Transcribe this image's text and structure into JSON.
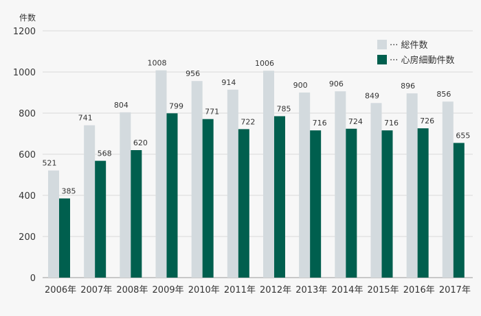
{
  "chart_data": {
    "type": "bar",
    "ylabel": "件数",
    "categories": [
      "2006年",
      "2007年",
      "2008年",
      "2009年",
      "2010年",
      "2011年",
      "2012年",
      "2013年",
      "2014年",
      "2015年",
      "2016年",
      "2017年"
    ],
    "series": [
      {
        "name": "総件数",
        "color": "#d3dade",
        "values": [
          521,
          741,
          804,
          1008,
          956,
          914,
          1006,
          900,
          906,
          849,
          896,
          856
        ]
      },
      {
        "name": "心房細動件数",
        "color": "#005f4e",
        "values": [
          385,
          568,
          620,
          799,
          771,
          722,
          785,
          716,
          724,
          716,
          726,
          655
        ]
      }
    ],
    "ylim": [
      0,
      1200
    ],
    "yticks": [
      0,
      200,
      400,
      600,
      800,
      1000,
      1200
    ],
    "grid": true,
    "legend_position": "top-right",
    "legend_prefix": "···"
  }
}
